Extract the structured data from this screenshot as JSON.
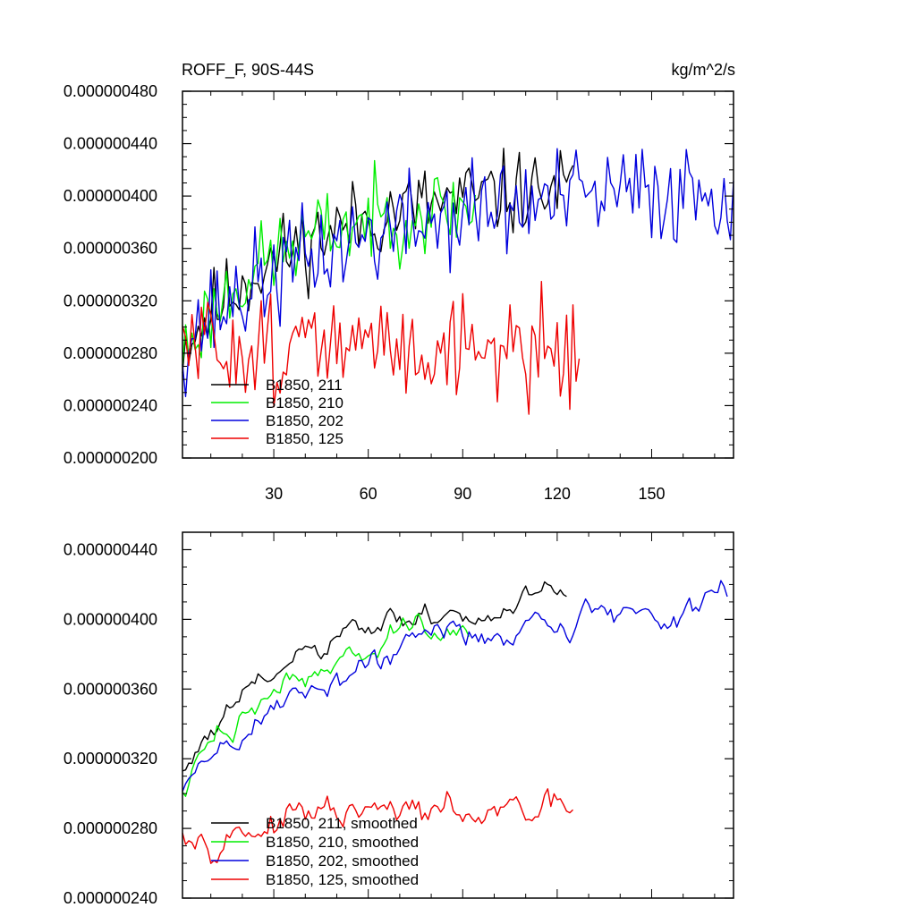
{
  "chart_data": [
    {
      "type": "line",
      "title_left": "ROFF_F, 90S-44S",
      "title_right": "kg/m^2/s",
      "xlim": [
        1,
        176
      ],
      "ylim": [
        2e-07,
        4.8e-07
      ],
      "x_ticks": [
        30,
        60,
        90,
        120,
        150
      ],
      "x_tick_labels": [
        "30",
        "60",
        "90",
        "120",
        "150"
      ],
      "y_ticks": [
        2e-07,
        2.4e-07,
        2.8e-07,
        3.2e-07,
        3.6e-07,
        4e-07,
        4.4e-07,
        4.8e-07
      ],
      "y_tick_labels": [
        "0.000000200",
        "0.000000240",
        "0.000000280",
        "0.000000320",
        "0.000000360",
        "0.000000400",
        "0.000000440",
        "0.000000480"
      ],
      "legend_position": "bottom-left",
      "series": [
        {
          "name": "B1850, 211",
          "color": "#000000",
          "length": 125,
          "start": 2.85e-07,
          "end": 4.05e-07,
          "noise": 1.6e-08,
          "seed": 11,
          "trend": "saturating"
        },
        {
          "name": "B1850, 210",
          "color": "#00ee00",
          "length": 94,
          "start": 2.8e-07,
          "end": 3.92e-07,
          "noise": 1.6e-08,
          "seed": 23,
          "trend": "saturating"
        },
        {
          "name": "B1850, 202",
          "color": "#0000dd",
          "length": 176,
          "start": 2.9e-07,
          "end": 4.05e-07,
          "noise": 2e-08,
          "seed": 37,
          "trend": "saturating"
        },
        {
          "name": "B1850, 125",
          "color": "#ee0000",
          "length": 127,
          "start": 2.85e-07,
          "end": 2.85e-07,
          "noise": 2e-08,
          "seed": 51,
          "trend": "flat"
        }
      ]
    },
    {
      "type": "line",
      "xlim": [
        1,
        176
      ],
      "ylim": [
        2.4e-07,
        4.5e-07
      ],
      "x_ticks": [
        30,
        60,
        90,
        120,
        150
      ],
      "y_ticks": [
        2.4e-07,
        2.8e-07,
        3.2e-07,
        3.6e-07,
        4e-07,
        4.4e-07
      ],
      "y_tick_labels": [
        "0.000000240",
        "0.000000280",
        "0.000000320",
        "0.000000360",
        "0.000000400",
        "0.000000440"
      ],
      "legend_position": "bottom-left",
      "series": [
        {
          "name": "B1850, 211, smoothed",
          "color": "#000000",
          "length": 123,
          "start": 3.12e-07,
          "end": 4.08e-07,
          "noise": 5e-09,
          "seed": 61,
          "trend": "saturating"
        },
        {
          "name": "B1850, 210, smoothed",
          "color": "#00ee00",
          "length": 92,
          "start": 2.98e-07,
          "end": 3.92e-07,
          "noise": 5e-09,
          "seed": 73,
          "trend": "saturating"
        },
        {
          "name": "B1850, 202, smoothed",
          "color": "#0000dd",
          "length": 174,
          "start": 3.02e-07,
          "end": 4.08e-07,
          "noise": 6e-09,
          "seed": 89,
          "trend": "saturating"
        },
        {
          "name": "B1850, 125, smoothed",
          "color": "#ee0000",
          "length": 125,
          "start": 2.84e-07,
          "end": 2.86e-07,
          "noise": 6e-09,
          "seed": 97,
          "trend": "flat"
        }
      ]
    }
  ]
}
